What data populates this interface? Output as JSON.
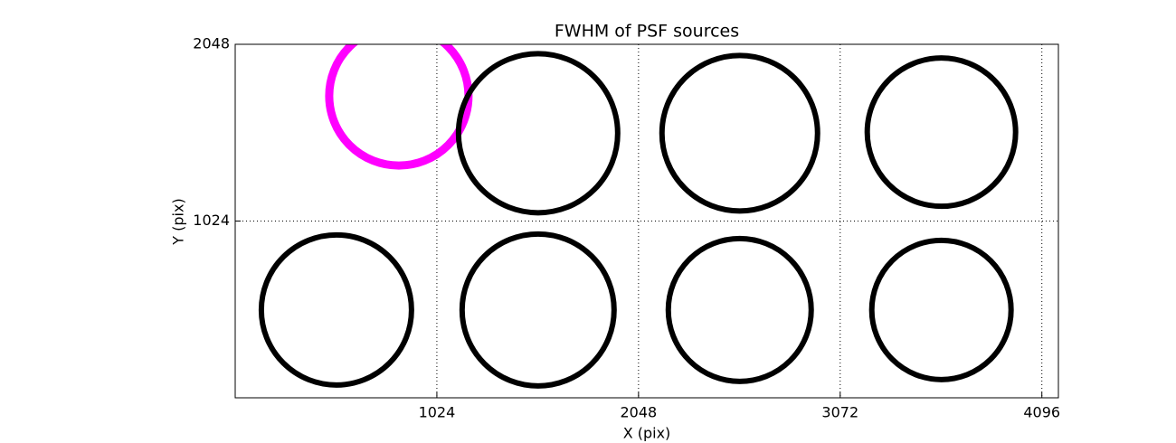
{
  "chart_data": {
    "type": "scatter",
    "title": "FWHM of PSF sources",
    "x_label": "X (pix)",
    "y_label": "Y (pix)",
    "xlim": [
      0,
      4180
    ],
    "ylim": [
      0,
      2048
    ],
    "xticks": [
      1024,
      2048,
      3072,
      4096
    ],
    "yticks": [
      1024,
      2048
    ],
    "grid": true,
    "marker": "open-circle",
    "series": [
      {
        "color": "#ff00ff",
        "x": [
          831
        ],
        "values": [
          1749
        ],
        "sizes": [
          77
        ]
      },
      {
        "color": "#000000",
        "x": [
          1538,
          2562,
          3586,
          514,
          1538,
          2562,
          3586
        ],
        "values": [
          1533,
          1533,
          1539,
          509,
          509,
          509,
          509
        ],
        "sizes": [
          88,
          86,
          82,
          83,
          84,
          79,
          77
        ]
      }
    ]
  }
}
